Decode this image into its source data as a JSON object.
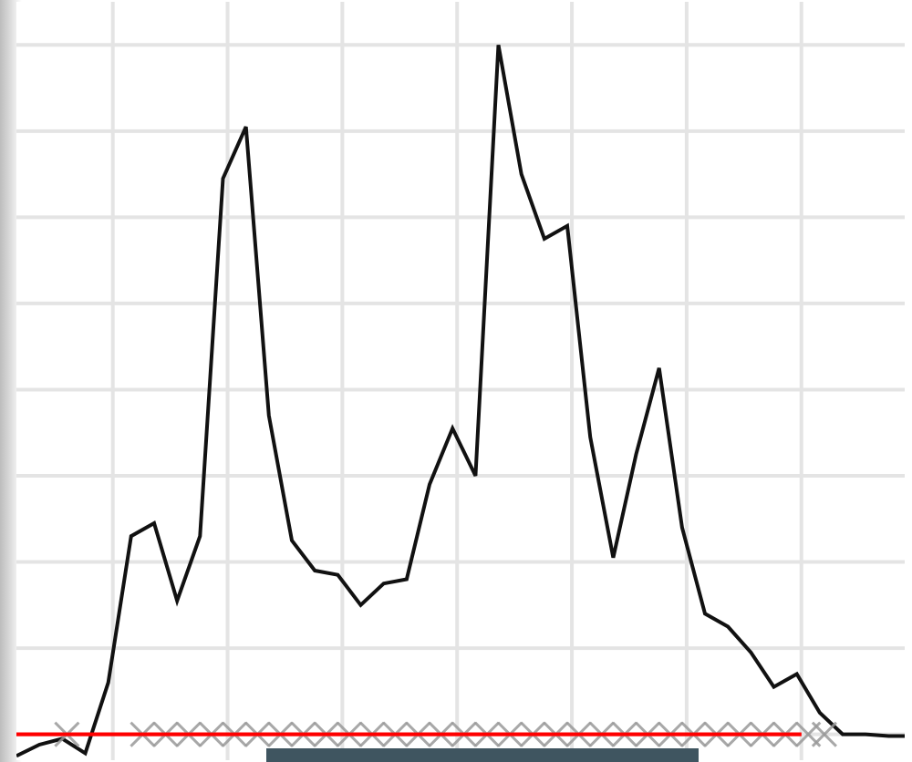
{
  "chart_data": {
    "type": "line",
    "title": "",
    "xlabel": "",
    "ylabel": "",
    "xlim": [
      -4.2,
      34.5
    ],
    "ylim": [
      -0.3,
      8.5
    ],
    "x_grid": [
      0,
      5,
      10,
      15,
      20,
      25,
      30,
      35
    ],
    "y_grid": [
      0,
      1,
      2,
      3,
      4,
      5,
      6,
      7,
      8
    ],
    "grid": true,
    "series": [
      {
        "kind": "line",
        "color": "#111111",
        "x": [
          -4.2,
          -3.2,
          -2.2,
          -1.2,
          -0.2,
          0.8,
          1.8,
          2.8,
          3.8,
          4.8,
          5.8,
          6.8,
          7.8,
          8.8,
          9.8,
          10.8,
          11.8,
          12.8,
          13.8,
          14.8,
          15.8,
          16.8,
          17.8,
          18.8,
          19.8,
          20.8,
          21.8,
          22.8,
          23.8,
          24.8,
          25.8,
          26.8,
          27.8,
          28.8,
          29.8,
          30.8,
          31.8,
          32.8,
          33.8,
          34.5
        ],
        "y": [
          -0.25,
          -0.12,
          -0.05,
          -0.22,
          0.6,
          2.3,
          2.45,
          1.55,
          2.3,
          6.45,
          7.05,
          3.7,
          2.25,
          1.9,
          1.85,
          1.5,
          1.75,
          1.8,
          2.9,
          3.55,
          3.0,
          8.0,
          6.5,
          5.75,
          5.9,
          3.45,
          2.05,
          3.25,
          4.25,
          2.4,
          1.4,
          1.25,
          0.95,
          0.55,
          0.7,
          0.25,
          0.0,
          0.0,
          -0.02,
          -0.02
        ]
      },
      {
        "kind": "line",
        "color": "#ff0000",
        "x": [
          -4.2,
          30.0
        ],
        "y": [
          0.0,
          0.0
        ]
      },
      {
        "kind": "scatter",
        "marker": "x",
        "color": "#999999",
        "x": [
          -2.0,
          1.3,
          2.3,
          3.3,
          4.3,
          5.3,
          6.3,
          7.3,
          8.3,
          9.3,
          10.3,
          11.3,
          12.3,
          13.3,
          14.3,
          15.3,
          16.3,
          17.3,
          18.3,
          19.3,
          20.3,
          21.3,
          22.3,
          23.3,
          24.3,
          25.3,
          26.3,
          27.3,
          28.3,
          29.3,
          30.3,
          31.0
        ],
        "y": [
          0.0,
          0.0,
          0.0,
          0.0,
          0.0,
          0.0,
          0.0,
          0.0,
          0.0,
          0.0,
          0.0,
          0.0,
          0.0,
          0.0,
          0.0,
          0.0,
          0.0,
          0.0,
          0.0,
          0.0,
          0.0,
          0.0,
          0.0,
          0.0,
          0.0,
          0.0,
          0.0,
          0.0,
          0.0,
          0.0,
          0.0,
          0.0
        ]
      }
    ]
  },
  "colors": {
    "grid": "#e4e4e4",
    "scrollbar": "#3f5560"
  }
}
